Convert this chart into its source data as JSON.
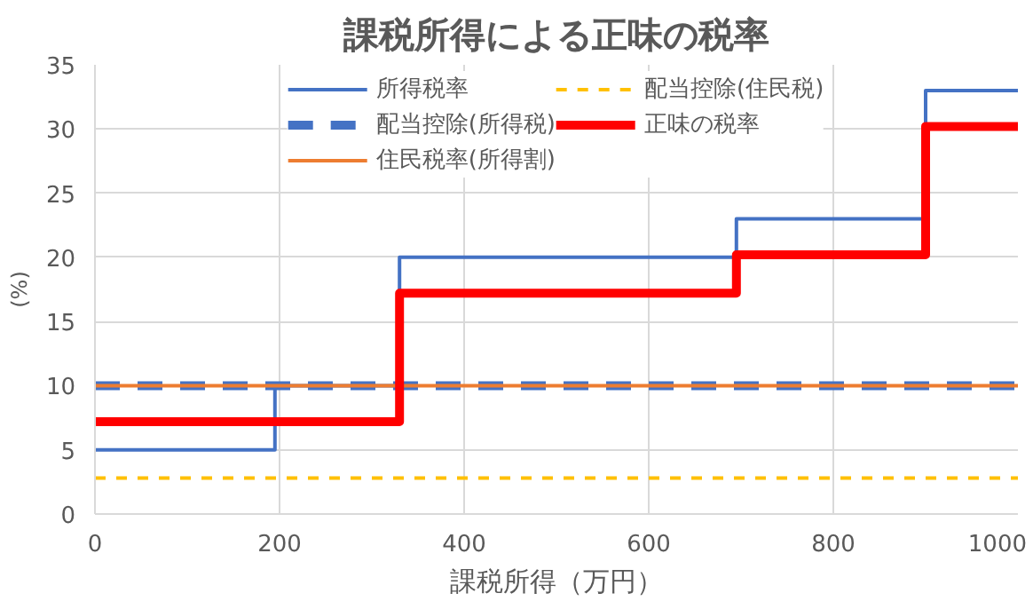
{
  "chart_data": {
    "type": "step",
    "title": "課税所得による正味の税率",
    "xlabel": "課税所得（万円）",
    "ylabel": "(%)",
    "xlim": [
      0,
      1000
    ],
    "xticks": [
      0,
      200,
      400,
      600,
      800,
      1000
    ],
    "ylim": [
      0,
      35
    ],
    "yticks": [
      0,
      5,
      10,
      15,
      20,
      25,
      30,
      35
    ],
    "grid": true,
    "legend": "top",
    "series": [
      {
        "name": "所得税率",
        "color": "#4472c4",
        "x": [
          0,
          195,
          330,
          695,
          900,
          1000
        ],
        "values": [
          5,
          10,
          20,
          23,
          33,
          33
        ],
        "line_style": "solid"
      },
      {
        "name": "配当控除(所得税)",
        "color": "#4472c4",
        "x": [
          0,
          1000
        ],
        "values": [
          10,
          10
        ],
        "line_style": "dashed"
      },
      {
        "name": "住民税率(所得割)",
        "color": "#ed7d31",
        "x": [
          0,
          1000
        ],
        "values": [
          10,
          10
        ],
        "line_style": "solid"
      },
      {
        "name": "配当控除(住民税)",
        "color": "#ffc000",
        "x": [
          0,
          1000
        ],
        "values": [
          2.8,
          2.8
        ],
        "line_style": "dashed"
      },
      {
        "name": "正味の税率",
        "color": "#ff0000",
        "x": [
          0,
          330,
          695,
          900,
          1000
        ],
        "values": [
          7.2,
          17.2,
          20.2,
          30.2,
          30.2
        ],
        "line_style": "solid"
      }
    ]
  }
}
